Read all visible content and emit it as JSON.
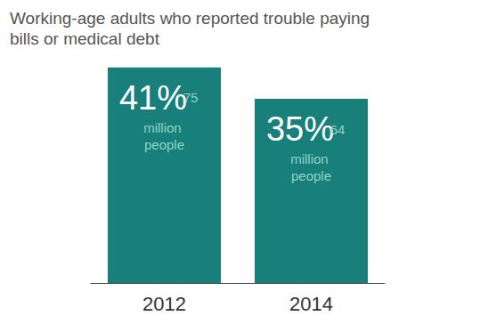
{
  "chart_data": {
    "type": "bar",
    "title": "Working-age adults who reported trouble paying bills or medical debt",
    "categories": [
      "2012",
      "2014"
    ],
    "values": [
      41,
      35
    ],
    "value_labels": [
      "41%",
      "35%"
    ],
    "annotations": [
      "75 million people",
      "64 million people"
    ],
    "color": "#197f7a",
    "ylim": [
      0,
      45
    ],
    "data_labels": true,
    "tick_labels": "x",
    "grid": false
  }
}
